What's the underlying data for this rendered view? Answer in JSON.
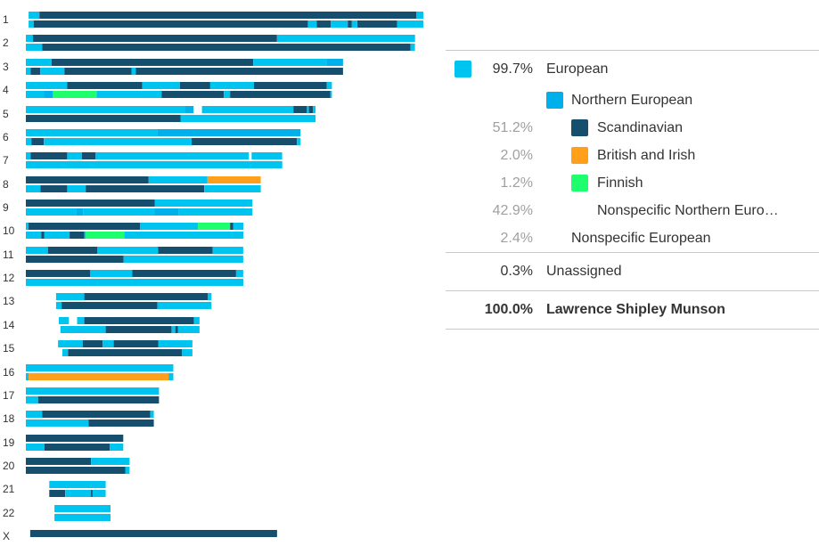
{
  "chart_data": {
    "type": "chromosome_painting",
    "colors": {
      "european": "#00c4f0",
      "northern_european": "#00b0ea",
      "scandinavian": "#154f6d",
      "british_irish": "#ff9f1a",
      "finnish": "#1eff6e"
    },
    "chromosomes": [
      {
        "label": "1",
        "start": 0.7,
        "end": 100,
        "hap1": [
          [
            "european",
            0.7,
            3.4
          ],
          [
            "scandinavian",
            3.4,
            98.2
          ],
          [
            "european",
            98.2,
            100
          ]
        ],
        "hap2": [
          [
            "european",
            0.7,
            2.0
          ],
          [
            "scandinavian",
            2.0,
            71.0
          ],
          [
            "european",
            71.0,
            73.2
          ],
          [
            "scandinavian",
            73.2,
            76.7
          ],
          [
            "european",
            76.7,
            81.0
          ],
          [
            "scandinavian",
            81.0,
            82.0
          ],
          [
            "european",
            82.0,
            83.4
          ],
          [
            "scandinavian",
            83.4,
            93.4
          ],
          [
            "european",
            93.4,
            100
          ]
        ]
      },
      {
        "label": "2",
        "start": 0.0,
        "end": 97.9,
        "hap1": [
          [
            "european",
            0.0,
            1.8
          ],
          [
            "scandinavian",
            1.8,
            63.2
          ],
          [
            "european",
            63.2,
            97.9
          ]
        ],
        "hap2": [
          [
            "european",
            0.0,
            4.1
          ],
          [
            "scandinavian",
            4.1,
            96.8
          ],
          [
            "european",
            96.8,
            97.9
          ]
        ]
      },
      {
        "label": "3",
        "start": 0.0,
        "end": 79.8,
        "hap1": [
          [
            "european",
            0.0,
            6.5
          ],
          [
            "scandinavian",
            6.5,
            57.2
          ],
          [
            "european",
            57.2,
            75.7
          ],
          [
            "northern_european",
            75.7,
            79.8
          ]
        ],
        "hap2": [
          [
            "european",
            0.0,
            1.2
          ],
          [
            "scandinavian",
            1.2,
            3.6
          ],
          [
            "european",
            3.6,
            9.7
          ],
          [
            "scandinavian",
            9.7,
            26.6
          ],
          [
            "european",
            26.6,
            27.7
          ],
          [
            "scandinavian",
            27.7,
            79.8
          ]
        ]
      },
      {
        "label": "4",
        "start": 0.0,
        "end": 77.0,
        "hap1": [
          [
            "european",
            0.0,
            10.4
          ],
          [
            "scandinavian",
            10.4,
            29.3
          ],
          [
            "european",
            29.3,
            38.8
          ],
          [
            "scandinavian",
            38.8,
            46.4
          ],
          [
            "european",
            46.4,
            57.4
          ],
          [
            "scandinavian",
            57.4,
            75.7
          ],
          [
            "european",
            75.7,
            77.0
          ]
        ],
        "hap2": [
          [
            "european",
            0.0,
            4.5
          ],
          [
            "northern_european",
            4.5,
            6.8
          ],
          [
            "finnish",
            6.8,
            17.8
          ],
          [
            "european",
            17.8,
            34.2
          ],
          [
            "scandinavian",
            34.2,
            49.8
          ],
          [
            "european",
            49.8,
            51.4
          ],
          [
            "scandinavian",
            51.4,
            76.6
          ],
          [
            "european",
            76.6,
            77.0
          ]
        ]
      },
      {
        "label": "5",
        "start": 0.0,
        "end": 72.9,
        "hap1": [
          [
            "european",
            0.0,
            40.0
          ],
          [
            "northern_european",
            40.0,
            42.2
          ],
          [
            "european",
            44.3,
            67.3
          ],
          [
            "scandinavian",
            67.3,
            70.7
          ],
          [
            "european",
            70.7,
            71.2
          ],
          [
            "scandinavian",
            71.2,
            72.2
          ],
          [
            "european",
            72.2,
            72.9
          ]
        ],
        "hap2": [
          [
            "scandinavian",
            0.0,
            38.9
          ],
          [
            "european",
            38.9,
            72.9
          ]
        ]
      },
      {
        "label": "6",
        "start": 0.0,
        "end": 69.1,
        "hap1": [
          [
            "european",
            0.0,
            33.1
          ],
          [
            "northern_european",
            33.1,
            69.1
          ]
        ],
        "hap2": [
          [
            "european",
            0.0,
            1.4
          ],
          [
            "scandinavian",
            1.4,
            4.5
          ],
          [
            "european",
            4.5,
            41.7
          ],
          [
            "scandinavian",
            41.7,
            68.2
          ],
          [
            "european",
            68.2,
            69.1
          ]
        ]
      },
      {
        "label": "7",
        "start": 0.0,
        "end": 64.5,
        "hap1": [
          [
            "european",
            0.0,
            1.2
          ],
          [
            "scandinavian",
            1.2,
            10.4
          ],
          [
            "european",
            10.4,
            14.1
          ],
          [
            "scandinavian",
            14.1,
            17.5
          ],
          [
            "european",
            17.5,
            56.1
          ],
          [
            "european",
            56.8,
            64.5
          ]
        ],
        "hap2": [
          [
            "european",
            0.0,
            64.5
          ]
        ]
      },
      {
        "label": "8",
        "start": 0.0,
        "end": 59.1,
        "hap1": [
          [
            "scandinavian",
            0.0,
            30.9
          ],
          [
            "european",
            30.9,
            45.7
          ],
          [
            "british_irish",
            45.7,
            59.1
          ]
        ],
        "hap2": [
          [
            "european",
            0.0,
            3.7
          ],
          [
            "scandinavian",
            3.7,
            10.4
          ],
          [
            "european",
            10.4,
            15.1
          ],
          [
            "scandinavian",
            15.1,
            44.9
          ],
          [
            "european",
            44.9,
            59.1
          ]
        ]
      },
      {
        "label": "9",
        "start": 0.0,
        "end": 57.0,
        "hap1": [
          [
            "scandinavian",
            0.0,
            32.4
          ],
          [
            "european",
            32.4,
            57.0
          ]
        ],
        "hap2": [
          [
            "european",
            0.0,
            12.7
          ],
          [
            "northern_european",
            12.7,
            14.5
          ],
          [
            "european",
            14.5,
            32.4
          ],
          [
            "northern_european",
            32.4,
            38.5
          ],
          [
            "european",
            38.5,
            57.0
          ]
        ]
      },
      {
        "label": "10",
        "start": 0.0,
        "end": 54.7,
        "hap1": [
          [
            "european",
            0.0,
            0.7
          ],
          [
            "scandinavian",
            0.7,
            28.7
          ],
          [
            "european",
            28.7,
            43.3
          ],
          [
            "finnish",
            43.3,
            51.4
          ],
          [
            "scandinavian",
            51.4,
            52.2
          ],
          [
            "european",
            52.2,
            54.7
          ]
        ],
        "hap2": [
          [
            "european",
            0.0,
            3.9
          ],
          [
            "scandinavian",
            3.9,
            4.6
          ],
          [
            "european",
            4.6,
            11.0
          ],
          [
            "scandinavian",
            11.0,
            14.7
          ],
          [
            "european",
            14.7,
            15.1
          ],
          [
            "finnish",
            15.1,
            24.8
          ],
          [
            "european",
            24.8,
            54.7
          ]
        ]
      },
      {
        "label": "11",
        "start": 0.0,
        "end": 54.7,
        "hap1": [
          [
            "european",
            0.0,
            5.6
          ],
          [
            "scandinavian",
            5.6,
            18.0
          ],
          [
            "european",
            18.0,
            33.3
          ],
          [
            "scandinavian",
            33.3,
            47.0
          ],
          [
            "european",
            47.0,
            54.7
          ]
        ],
        "hap2": [
          [
            "scandinavian",
            0.0,
            24.6
          ],
          [
            "european",
            24.6,
            54.7
          ]
        ]
      },
      {
        "label": "12",
        "start": 0.0,
        "end": 54.7,
        "hap1": [
          [
            "scandinavian",
            0.0,
            16.2
          ],
          [
            "european",
            16.2,
            26.8
          ],
          [
            "scandinavian",
            26.8,
            52.9
          ],
          [
            "european",
            52.9,
            54.7
          ]
        ],
        "hap2": [
          [
            "european",
            0.0,
            54.7
          ]
        ]
      },
      {
        "label": "13",
        "start": 7.6,
        "end": 46.7,
        "hap1": [
          [
            "european",
            7.6,
            14.7
          ],
          [
            "scandinavian",
            14.7,
            45.8
          ],
          [
            "european",
            45.8,
            46.7
          ]
        ],
        "hap2": [
          [
            "european",
            7.6,
            9.0
          ],
          [
            "scandinavian",
            9.0,
            33.1
          ],
          [
            "european",
            33.1,
            46.7
          ]
        ]
      },
      {
        "label": "14",
        "start": 8.3,
        "end": 43.7,
        "hap1": [
          [
            "european",
            8.3,
            10.8
          ],
          [
            "european",
            12.9,
            14.7
          ],
          [
            "scandinavian",
            14.7,
            42.3
          ],
          [
            "european",
            42.3,
            43.7
          ]
        ],
        "hap2": [
          [
            "european",
            8.7,
            20.1
          ],
          [
            "scandinavian",
            20.1,
            36.7
          ],
          [
            "european",
            36.7,
            37.6
          ],
          [
            "scandinavian",
            37.6,
            38.3
          ],
          [
            "european",
            38.3,
            43.7
          ]
        ]
      },
      {
        "label": "15",
        "start": 8.1,
        "end": 41.9,
        "hap1": [
          [
            "european",
            8.1,
            14.3
          ],
          [
            "scandinavian",
            14.3,
            19.3
          ],
          [
            "european",
            19.3,
            22.1
          ],
          [
            "scandinavian",
            22.1,
            33.3
          ],
          [
            "european",
            33.3,
            41.9
          ]
        ],
        "hap2": [
          [
            "european",
            9.2,
            10.6
          ],
          [
            "scandinavian",
            10.6,
            39.3
          ],
          [
            "european",
            39.3,
            41.9
          ]
        ]
      },
      {
        "label": "16",
        "start": 0.0,
        "end": 37.1,
        "hap1": [
          [
            "european",
            0.0,
            37.1
          ]
        ],
        "hap2": [
          [
            "european",
            0.0,
            0.7
          ],
          [
            "british_irish",
            0.7,
            35.9
          ],
          [
            "european",
            35.9,
            37.1
          ]
        ]
      },
      {
        "label": "17",
        "start": 0.0,
        "end": 33.5,
        "hap1": [
          [
            "european",
            0.0,
            33.5
          ]
        ],
        "hap2": [
          [
            "european",
            0.0,
            3.1
          ],
          [
            "scandinavian",
            3.1,
            33.5
          ]
        ]
      },
      {
        "label": "18",
        "start": 0.0,
        "end": 32.2,
        "hap1": [
          [
            "european",
            0.0,
            4.1
          ],
          [
            "scandinavian",
            4.1,
            31.3
          ],
          [
            "european",
            31.3,
            32.2
          ]
        ],
        "hap2": [
          [
            "european",
            0.0,
            15.8
          ],
          [
            "scandinavian",
            15.8,
            32.2
          ]
        ]
      },
      {
        "label": "19",
        "start": 0.0,
        "end": 24.5,
        "hap1": [
          [
            "scandinavian",
            0.0,
            24.5
          ]
        ],
        "hap2": [
          [
            "european",
            0.0,
            4.7
          ],
          [
            "scandinavian",
            4.7,
            21.1
          ],
          [
            "european",
            21.1,
            24.5
          ]
        ]
      },
      {
        "label": "20",
        "start": 0.0,
        "end": 26.1,
        "hap1": [
          [
            "scandinavian",
            0.0,
            16.4
          ],
          [
            "european",
            16.4,
            26.1
          ]
        ],
        "hap2": [
          [
            "scandinavian",
            0.0,
            25.0
          ],
          [
            "european",
            25.0,
            26.1
          ]
        ]
      },
      {
        "label": "21",
        "start": 5.9,
        "end": 20.1,
        "hap1": [
          [
            "european",
            5.9,
            20.1
          ]
        ],
        "hap2": [
          [
            "scandinavian",
            5.9,
            9.9
          ],
          [
            "european",
            9.9,
            16.4
          ],
          [
            "scandinavian",
            16.4,
            16.8
          ],
          [
            "european",
            16.8,
            20.1
          ]
        ]
      },
      {
        "label": "22",
        "start": 7.2,
        "end": 21.3,
        "hap1": [
          [
            "european",
            7.2,
            21.3
          ]
        ],
        "hap2": [
          [
            "european",
            7.2,
            21.3
          ]
        ]
      },
      {
        "label": "X",
        "start": 1.1,
        "end": 63.2,
        "hap1": [
          [
            "scandinavian",
            1.1,
            63.2
          ]
        ],
        "hap2": []
      }
    ],
    "legend": [
      {
        "percent": "99.7%",
        "label": "European",
        "color": "#00c4f0",
        "level": 0,
        "muted": false
      },
      {
        "percent": "",
        "label": "Northern European",
        "color": "#00b0ea",
        "level": 1,
        "muted": false
      },
      {
        "percent": "51.2%",
        "label": "Scandinavian",
        "color": "#154f6d",
        "level": 2,
        "muted": true
      },
      {
        "percent": "2.0%",
        "label": "British and Irish",
        "color": "#ff9f1a",
        "level": 2,
        "muted": true
      },
      {
        "percent": "1.2%",
        "label": "Finnish",
        "color": "#1eff6e",
        "level": 2,
        "muted": true
      },
      {
        "percent": "42.9%",
        "label": "Nonspecific Northern Euro…",
        "color": "",
        "level": 2,
        "muted": true
      },
      {
        "percent": "2.4%",
        "label": "Nonspecific European",
        "color": "",
        "level": 1,
        "muted": true
      }
    ],
    "unassigned": {
      "percent": "0.3%",
      "label": "Unassigned"
    },
    "total": {
      "percent": "100.0%",
      "label": "Lawrence Shipley Munson"
    }
  }
}
